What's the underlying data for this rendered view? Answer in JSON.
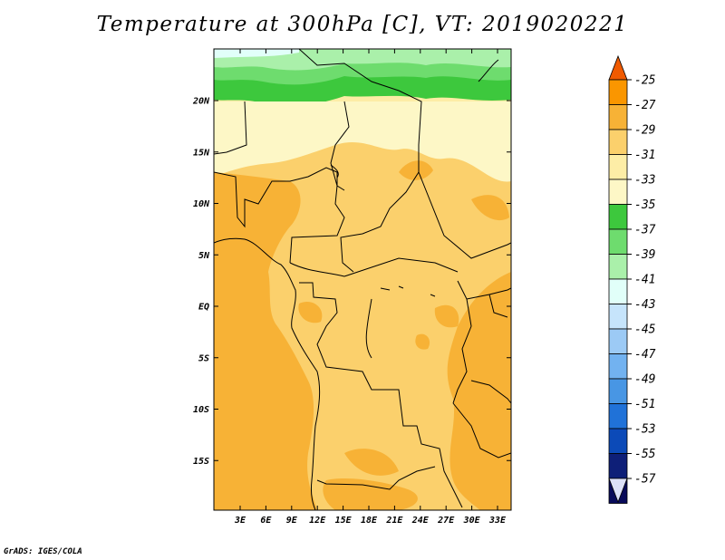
{
  "title": "Temperature at 300hPa [C], VT: 2019020221",
  "credit": "GrADS: IGES/COLA",
  "map": {
    "lat_labels": [
      "20N",
      "15N",
      "10N",
      "5N",
      "EQ",
      "5S",
      "10S",
      "15S"
    ],
    "lon_labels": [
      "3E",
      "6E",
      "9E",
      "12E",
      "15E",
      "18E",
      "21E",
      "24E",
      "27E",
      "30E",
      "33E"
    ]
  },
  "colorbar": {
    "labels": [
      "-25",
      "-27",
      "-29",
      "-31",
      "-33",
      "-35",
      "-37",
      "-39",
      "-41",
      "-43",
      "-45",
      "-47",
      "-49",
      "-51",
      "-53",
      "-55",
      "-57"
    ],
    "colors": [
      "#f05a00",
      "#fa9600",
      "#f7b236",
      "#fbd06c",
      "#fdeda6",
      "#fdf7c6",
      "#3dc83d",
      "#6edc6e",
      "#aaf0aa",
      "#e1fff9",
      "#c6e4fb",
      "#9ccaf5",
      "#72b2f0",
      "#4896e4",
      "#2072d8",
      "#0c4ab8",
      "#0e1f78",
      "#080a5a",
      "#dce0f8"
    ]
  }
}
